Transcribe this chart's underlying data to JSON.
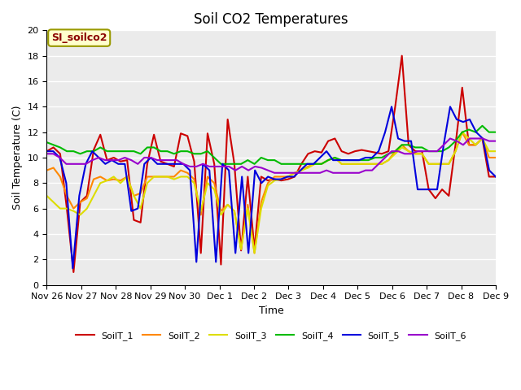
{
  "title": "Soil CO2 Temperatures",
  "xlabel": "Time",
  "ylabel": "Soil Temperature (C)",
  "annotation": "SI_soilco2",
  "ylim": [
    0,
    20
  ],
  "fig_bg": "#ffffff",
  "plot_bg": "#ebebeb",
  "series_colors": {
    "SoilT_1": "#cc0000",
    "SoilT_2": "#ff8800",
    "SoilT_3": "#dddd00",
    "SoilT_4": "#00bb00",
    "SoilT_5": "#0000dd",
    "SoilT_6": "#9900cc"
  },
  "x_tick_labels": [
    "Nov 26",
    "Nov 27",
    "Nov 28",
    "Nov 29",
    "Nov 30",
    "Dec 1",
    "Dec 2",
    "Dec 3",
    "Dec 4",
    "Dec 5",
    "Dec 6",
    "Dec 7",
    "Dec 8",
    "Dec 9"
  ],
  "SoilT_1": [
    10.5,
    10.8,
    10.3,
    6.0,
    1.0,
    6.5,
    7.0,
    10.6,
    11.8,
    9.8,
    10.0,
    9.7,
    9.8,
    5.1,
    4.9,
    9.5,
    11.8,
    9.7,
    9.5,
    9.3,
    11.9,
    11.7,
    9.7,
    2.5,
    11.9,
    9.5,
    1.6,
    13.0,
    9.5,
    2.7,
    8.5,
    2.8,
    8.5,
    8.2,
    8.3,
    8.2,
    8.3,
    8.5,
    9.5,
    10.3,
    10.5,
    10.4,
    11.3,
    11.5,
    10.5,
    10.3,
    10.5,
    10.6,
    10.5,
    10.4,
    10.3,
    10.5,
    14.0,
    18.0,
    11.0,
    10.5,
    10.5,
    7.5,
    6.8,
    7.5,
    7.0,
    11.0,
    15.5,
    11.0,
    11.0,
    11.5,
    8.5,
    8.5
  ],
  "SoilT_2": [
    9.0,
    9.2,
    8.5,
    7.0,
    6.0,
    6.5,
    6.8,
    8.3,
    8.5,
    8.2,
    8.3,
    8.2,
    8.5,
    7.0,
    7.2,
    8.5,
    8.5,
    8.5,
    8.5,
    8.5,
    9.0,
    8.8,
    8.3,
    5.5,
    8.5,
    8.0,
    5.8,
    6.3,
    5.8,
    2.8,
    6.3,
    2.5,
    6.5,
    8.0,
    8.5,
    8.5,
    8.5,
    8.8,
    9.0,
    9.3,
    9.5,
    9.5,
    9.8,
    10.0,
    9.5,
    9.5,
    9.5,
    9.5,
    9.5,
    9.5,
    9.5,
    9.8,
    10.5,
    11.0,
    10.5,
    10.3,
    10.3,
    9.5,
    9.5,
    9.5,
    9.5,
    10.5,
    12.0,
    11.0,
    11.0,
    11.5,
    10.0,
    10.0
  ],
  "SoilT_3": [
    7.0,
    6.5,
    6.0,
    6.0,
    5.8,
    5.5,
    6.0,
    7.0,
    8.0,
    8.2,
    8.5,
    8.0,
    8.5,
    7.0,
    6.0,
    8.0,
    8.5,
    8.5,
    8.5,
    8.3,
    8.5,
    8.5,
    8.0,
    5.8,
    8.0,
    7.5,
    5.5,
    6.3,
    5.8,
    2.8,
    6.0,
    2.5,
    6.0,
    7.8,
    8.2,
    8.3,
    8.5,
    8.8,
    9.0,
    9.2,
    9.5,
    9.5,
    9.8,
    10.0,
    9.5,
    9.5,
    9.5,
    9.5,
    9.5,
    9.5,
    9.5,
    9.8,
    10.3,
    10.8,
    10.5,
    10.3,
    10.3,
    9.5,
    9.5,
    9.5,
    9.5,
    10.5,
    12.0,
    11.5,
    11.0,
    11.5,
    10.5,
    10.5
  ],
  "SoilT_4": [
    11.2,
    11.0,
    10.8,
    10.5,
    10.5,
    10.3,
    10.5,
    10.5,
    10.8,
    10.5,
    10.5,
    10.5,
    10.5,
    10.5,
    10.3,
    10.8,
    10.8,
    10.5,
    10.5,
    10.3,
    10.5,
    10.5,
    10.3,
    10.3,
    10.5,
    10.0,
    9.5,
    9.5,
    9.5,
    9.5,
    9.8,
    9.5,
    10.0,
    9.8,
    9.8,
    9.5,
    9.5,
    9.5,
    9.5,
    9.5,
    9.5,
    9.5,
    9.8,
    10.0,
    9.8,
    9.8,
    9.8,
    9.8,
    9.8,
    10.0,
    10.0,
    10.3,
    10.5,
    11.0,
    11.0,
    10.8,
    10.8,
    10.5,
    10.5,
    10.5,
    10.8,
    11.3,
    12.0,
    12.2,
    12.0,
    12.5,
    12.0,
    12.0
  ],
  "SoilT_5": [
    10.5,
    10.5,
    10.0,
    8.0,
    1.3,
    7.0,
    9.5,
    10.5,
    10.0,
    9.5,
    9.8,
    9.5,
    9.5,
    5.8,
    6.0,
    9.5,
    10.0,
    9.5,
    9.5,
    9.5,
    9.5,
    9.5,
    9.0,
    1.8,
    9.5,
    9.0,
    1.8,
    9.5,
    9.0,
    2.5,
    8.5,
    2.5,
    9.0,
    8.0,
    8.5,
    8.3,
    8.3,
    8.5,
    8.5,
    9.0,
    9.5,
    9.5,
    10.0,
    10.5,
    9.8,
    9.8,
    9.8,
    9.8,
    9.8,
    10.0,
    10.0,
    10.5,
    12.0,
    14.0,
    11.5,
    11.3,
    11.3,
    7.5,
    7.5,
    7.5,
    7.5,
    11.0,
    14.0,
    13.0,
    12.8,
    13.0,
    12.0,
    11.5,
    9.0,
    8.5
  ],
  "SoilT_6": [
    10.3,
    10.3,
    10.0,
    9.5,
    9.5,
    9.5,
    9.5,
    9.8,
    10.0,
    9.8,
    9.8,
    9.8,
    10.0,
    9.8,
    9.5,
    10.0,
    10.0,
    9.8,
    9.8,
    9.8,
    9.8,
    9.5,
    9.3,
    9.3,
    9.5,
    9.3,
    9.3,
    9.3,
    9.3,
    9.0,
    9.3,
    9.0,
    9.3,
    9.2,
    9.0,
    8.8,
    8.8,
    8.8,
    8.8,
    8.8,
    8.8,
    8.8,
    8.8,
    9.0,
    8.8,
    8.8,
    8.8,
    8.8,
    8.8,
    9.0,
    9.0,
    9.5,
    10.0,
    10.5,
    10.5,
    10.3,
    10.3,
    10.5,
    10.5,
    10.5,
    10.5,
    11.0,
    11.5,
    11.3,
    11.0,
    11.5,
    11.5,
    11.5,
    11.3,
    11.3
  ],
  "yticks": [
    0,
    2,
    4,
    6,
    8,
    10,
    12,
    14,
    16,
    18,
    20
  ],
  "linewidth": 1.5,
  "title_fontsize": 12,
  "axis_label_fontsize": 9,
  "tick_fontsize": 8
}
